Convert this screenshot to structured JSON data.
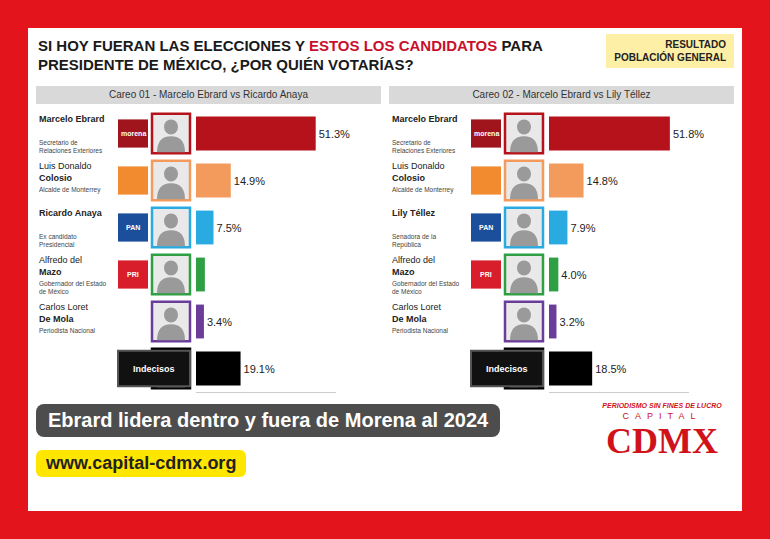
{
  "header": {
    "title_parts": [
      {
        "text": "SI HOY FUERAN LAS ELECCIONES Y ",
        "color": "#1a1a1a"
      },
      {
        "text": "ESTOS LOS CANDIDATOS",
        "color": "#c8102e"
      },
      {
        "text": " PARA PRESIDENTE DE MÉXICO, ¿POR QUIÉN VOTARÍAS?",
        "color": "#1a1a1a"
      }
    ],
    "badge": [
      "RESULTADO",
      "POBLACIÓN GENERAL"
    ]
  },
  "chart_data": [
    {
      "type": "bar",
      "title": "Careo 01 - Marcelo Ebrard vs Ricardo Anaya",
      "orientation": "horizontal",
      "categories": [
        "Marcelo Ebrard",
        "Luis Donaldo Colosio",
        "Ricardo Anaya",
        "Alfredo del Mazo",
        "Carlos Loret De Mola",
        "Indecisos"
      ],
      "descriptions": [
        "Secretario de Relaciones Exteriores",
        "Alcalde de Monterrey",
        "Ex candidato Presidencial",
        "Gobernador del Estado de México",
        "Periodista Nacional",
        null
      ],
      "parties": [
        {
          "label": "morena",
          "color": "#a0151c"
        },
        {
          "label": null,
          "color": "#f28a30"
        },
        {
          "label": "PAN",
          "color": "#1b4f9c"
        },
        {
          "label": "PRI",
          "color": "#d81e2a"
        },
        null,
        null
      ],
      "values": [
        51.3,
        14.9,
        7.5,
        3.8,
        3.4,
        19.1
      ],
      "value_labels": [
        "51.3%",
        "14.9%",
        "7.5%",
        null,
        "3.4%",
        "19.1%"
      ],
      "colors": [
        "#b5121b",
        "#f39b5d",
        "#29abe2",
        "#2ea043",
        "#6a3d9a",
        "#000000"
      ],
      "xlim": [
        0,
        60
      ],
      "data_labels": true,
      "tick_labels": false,
      "grid": false
    },
    {
      "type": "bar",
      "title": "Careo 02 - Marcelo Ebrard vs Lily Téllez",
      "orientation": "horizontal",
      "categories": [
        "Marcelo Ebrard",
        "Luis Donaldo Colosio",
        "Lily Téllez",
        "Alfredo del Mazo",
        "Carlos Loret De Mola",
        "Indecisos"
      ],
      "descriptions": [
        "Secretario de Relaciones Exteriores",
        "Alcalde de Monterrey",
        "Senadora de la República",
        "Gobernador del Estado de México",
        "Periodista Nacional",
        null
      ],
      "parties": [
        {
          "label": "morena",
          "color": "#a0151c"
        },
        {
          "label": null,
          "color": "#f28a30"
        },
        {
          "label": "PAN",
          "color": "#1b4f9c"
        },
        {
          "label": "PRI",
          "color": "#d81e2a"
        },
        null,
        null
      ],
      "values": [
        51.8,
        14.8,
        7.9,
        4.0,
        3.2,
        18.5
      ],
      "value_labels": [
        "51.8%",
        "14.8%",
        "7.9%",
        "4.0%",
        "3.2%",
        "18.5%"
      ],
      "colors": [
        "#b5121b",
        "#f39b5d",
        "#29abe2",
        "#2ea043",
        "#6a3d9a",
        "#000000"
      ],
      "xlim": [
        0,
        60
      ],
      "data_labels": true,
      "tick_labels": false,
      "grid": false
    }
  ],
  "overlay": {
    "headline": "Ebrard lidera dentro y fuera de Morena al 2024",
    "website": "www.capital-cdmx.org",
    "logo": {
      "tagline": "PERIODISMO SIN FINES DE LUCRO",
      "name": "CAPITAL",
      "text": "CDMX"
    }
  }
}
